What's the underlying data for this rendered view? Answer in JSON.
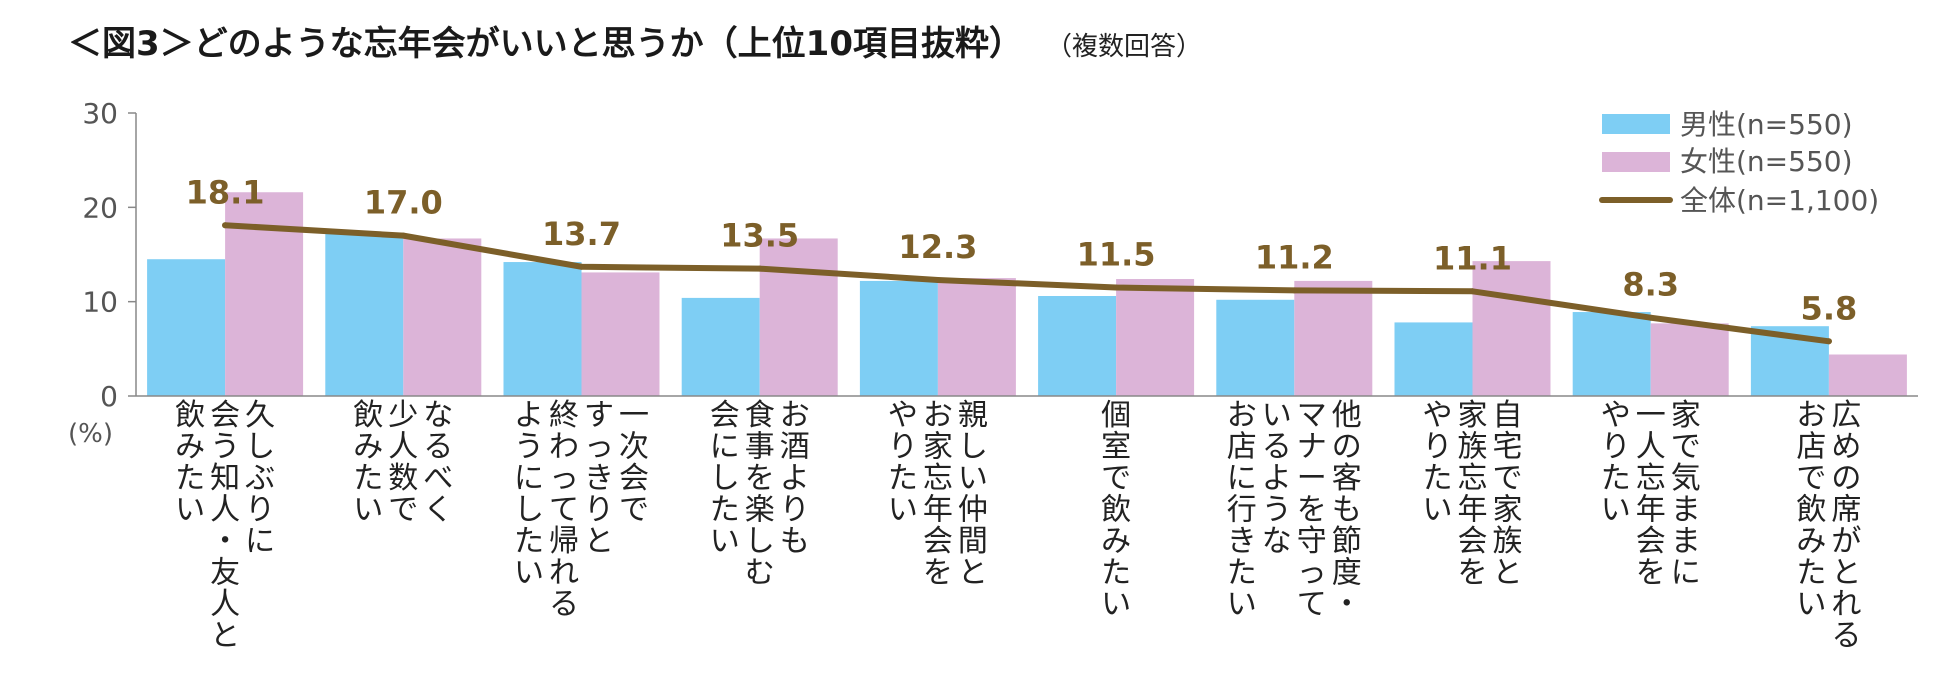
{
  "title": "＜図3＞どのような忘年会がいいと思うか（上位10項目抜粋）",
  "subtitle": "（複数回答）",
  "chart_data": {
    "type": "bar",
    "ylabel": "(%)",
    "ylim": [
      0,
      30
    ],
    "yticks": [
      "0",
      "10",
      "20",
      "30"
    ],
    "grid": false,
    "legend_position": "top-right",
    "categories": [
      [
        "久しぶりに",
        "会う知人・友人と",
        "飲みたい"
      ],
      [
        "なるべく",
        "少人数で",
        "飲みたい"
      ],
      [
        "一次会で",
        "すっきりと",
        "終わって帰れる",
        "ようにしたい"
      ],
      [
        "お酒よりも",
        "食事を楽しむ",
        "会にしたい"
      ],
      [
        "親しい仲間と",
        "お家忘年会を",
        "やりたい"
      ],
      [
        "個室で飲みたい"
      ],
      [
        "他の客も節度・",
        "マナーを守って",
        "いるような",
        "お店に行きたい"
      ],
      [
        "自宅で家族と",
        "家族忘年会を",
        "やりたい"
      ],
      [
        "家で気ままに",
        "一人忘年会を",
        "やりたい"
      ],
      [
        "広めの席がとれる",
        "お店で飲みたい"
      ]
    ],
    "series": [
      {
        "name": "男性(n=550)",
        "type": "bar",
        "color": "#7ecef4",
        "values": [
          14.5,
          17.3,
          14.2,
          10.4,
          12.2,
          10.6,
          10.2,
          7.8,
          8.9,
          7.4
        ]
      },
      {
        "name": "女性(n=550)",
        "type": "bar",
        "color": "#dcb4d8",
        "values": [
          21.6,
          16.7,
          13.1,
          16.7,
          12.5,
          12.4,
          12.2,
          14.3,
          7.7,
          4.4
        ]
      },
      {
        "name": "全体(n=1,100)",
        "type": "line",
        "color": "#7c5f29",
        "values": [
          18.1,
          17.0,
          13.7,
          13.5,
          12.3,
          11.5,
          11.2,
          11.1,
          8.3,
          5.8
        ],
        "labels": [
          "18.1",
          "17.0",
          "13.7",
          "13.5",
          "12.3",
          "11.5",
          "11.2",
          "11.1",
          "8.3",
          "5.8"
        ]
      }
    ]
  }
}
